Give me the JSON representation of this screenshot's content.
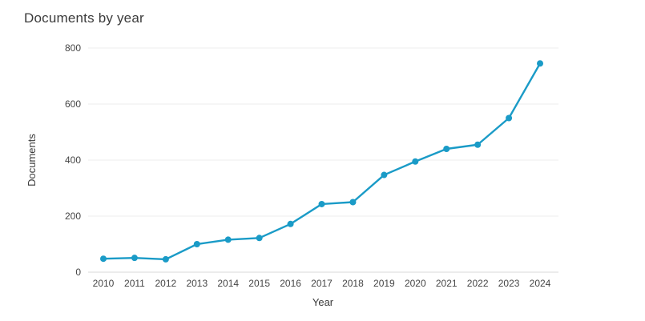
{
  "chart_data": {
    "type": "line",
    "title": "Documents by year",
    "xlabel": "Year",
    "ylabel": "Documents",
    "categories": [
      "2010",
      "2011",
      "2012",
      "2013",
      "2014",
      "2015",
      "2016",
      "2017",
      "2018",
      "2019",
      "2020",
      "2021",
      "2022",
      "2023",
      "2024"
    ],
    "values": [
      48,
      51,
      46,
      100,
      116,
      122,
      172,
      243,
      250,
      347,
      395,
      440,
      455,
      550,
      745
    ],
    "ylim": [
      0,
      800
    ],
    "yticks": [
      0,
      200,
      400,
      600,
      800
    ],
    "grid": true,
    "legend": "none",
    "line_color": "#1a9bc7",
    "marker": "circle"
  }
}
